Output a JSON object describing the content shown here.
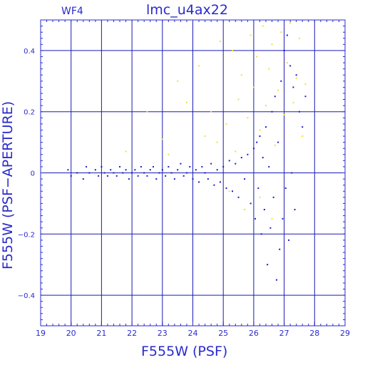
{
  "colors": {
    "axes": "#2a2acd",
    "grid": "#1a1ab4",
    "blue_points": "#1a1ad2",
    "yellow_points": "#f3de3a"
  },
  "chart_data": {
    "type": "scatter",
    "panel_label": "WF4",
    "title": "lmc_u4ax22",
    "xlabel": "F555W (PSF)",
    "ylabel": "F555W (PSF−APERTURE)",
    "xlim": [
      19,
      29
    ],
    "ylim": [
      -0.5,
      0.5
    ],
    "xticks": [
      19,
      20,
      21,
      22,
      23,
      24,
      25,
      26,
      27,
      28,
      29
    ],
    "yticks": [
      -0.4,
      -0.2,
      0,
      0.2,
      0.4
    ],
    "ytick_labels": [
      "−0.4",
      "−0.2",
      "0",
      "0.2",
      "0.4"
    ],
    "grid": true,
    "series": [
      {
        "color": "blue",
        "points": [
          [
            19.9,
            0.01
          ],
          [
            20.0,
            -0.01
          ],
          [
            20.2,
            0.0
          ],
          [
            20.4,
            -0.02
          ],
          [
            20.5,
            0.02
          ],
          [
            20.6,
            0.0
          ],
          [
            20.8,
            0.01
          ],
          [
            20.9,
            -0.01
          ],
          [
            21.0,
            0.02
          ],
          [
            21.1,
            0.0
          ],
          [
            21.2,
            -0.01
          ],
          [
            21.3,
            0.01
          ],
          [
            21.4,
            0.0
          ],
          [
            21.5,
            -0.01
          ],
          [
            21.6,
            0.02
          ],
          [
            21.7,
            0.0
          ],
          [
            21.8,
            0.01
          ],
          [
            21.9,
            -0.02
          ],
          [
            22.0,
            0.0
          ],
          [
            22.1,
            0.01
          ],
          [
            22.2,
            -0.01
          ],
          [
            22.3,
            0.02
          ],
          [
            22.4,
            0.0
          ],
          [
            22.5,
            -0.01
          ],
          [
            22.6,
            0.01
          ],
          [
            22.7,
            0.02
          ],
          [
            22.8,
            -0.02
          ],
          [
            22.9,
            0.0
          ],
          [
            23.0,
            0.01
          ],
          [
            23.1,
            -0.01
          ],
          [
            23.2,
            0.02
          ],
          [
            23.3,
            0.0
          ],
          [
            23.4,
            -0.02
          ],
          [
            23.5,
            0.01
          ],
          [
            23.6,
            0.03
          ],
          [
            23.7,
            -0.01
          ],
          [
            23.8,
            0.0
          ],
          [
            23.9,
            0.02
          ],
          [
            24.0,
            -0.02
          ],
          [
            24.1,
            0.01
          ],
          [
            24.2,
            -0.03
          ],
          [
            24.3,
            0.02
          ],
          [
            24.4,
            0.0
          ],
          [
            24.5,
            -0.02
          ],
          [
            24.6,
            0.03
          ],
          [
            24.7,
            -0.04
          ],
          [
            24.8,
            0.01
          ],
          [
            24.9,
            -0.03
          ],
          [
            25.0,
            0.02
          ],
          [
            25.1,
            -0.05
          ],
          [
            25.2,
            0.04
          ],
          [
            25.3,
            -0.06
          ],
          [
            25.4,
            0.03
          ],
          [
            25.5,
            -0.08
          ],
          [
            25.6,
            0.05
          ],
          [
            25.7,
            -0.02
          ],
          [
            25.8,
            0.06
          ],
          [
            25.9,
            -0.1
          ],
          [
            26.0,
            0.08
          ],
          [
            26.05,
            -0.15
          ],
          [
            26.1,
            0.1
          ],
          [
            26.15,
            -0.05
          ],
          [
            26.2,
            0.12
          ],
          [
            26.25,
            -0.2
          ],
          [
            26.3,
            0.05
          ],
          [
            26.35,
            -0.12
          ],
          [
            26.4,
            0.15
          ],
          [
            26.45,
            -0.3
          ],
          [
            26.5,
            0.02
          ],
          [
            26.55,
            -0.18
          ],
          [
            26.6,
            0.2
          ],
          [
            26.65,
            -0.08
          ],
          [
            26.7,
            0.25
          ],
          [
            26.75,
            -0.35
          ],
          [
            26.8,
            0.1
          ],
          [
            26.85,
            -0.25
          ],
          [
            26.9,
            0.3
          ],
          [
            26.95,
            -0.15
          ],
          [
            27.0,
            0.4
          ],
          [
            27.05,
            -0.05
          ],
          [
            27.1,
            0.45
          ],
          [
            27.15,
            -0.22
          ],
          [
            27.2,
            0.35
          ],
          [
            27.25,
            0.0
          ],
          [
            27.3,
            0.28
          ],
          [
            27.35,
            -0.12
          ],
          [
            27.4,
            0.32
          ],
          [
            27.5,
            0.2
          ],
          [
            27.6,
            0.15
          ],
          [
            27.7,
            0.25
          ]
        ]
      },
      {
        "color": "yellow",
        "points": [
          [
            21.8,
            0.07
          ],
          [
            22.5,
            0.2
          ],
          [
            23.0,
            0.11
          ],
          [
            23.2,
            0.06
          ],
          [
            23.5,
            0.3
          ],
          [
            23.8,
            0.23
          ],
          [
            24.2,
            0.35
          ],
          [
            24.4,
            0.12
          ],
          [
            24.6,
            0.2
          ],
          [
            24.8,
            0.1
          ],
          [
            24.9,
            0.43
          ],
          [
            25.1,
            0.16
          ],
          [
            25.3,
            0.4
          ],
          [
            25.4,
            0.07
          ],
          [
            25.5,
            0.24
          ],
          [
            25.6,
            0.32
          ],
          [
            25.8,
            0.18
          ],
          [
            25.9,
            0.45
          ],
          [
            26.0,
            0.28
          ],
          [
            26.1,
            0.38
          ],
          [
            26.2,
            0.14
          ],
          [
            26.3,
            0.48
          ],
          [
            26.4,
            0.22
          ],
          [
            26.5,
            0.34
          ],
          [
            26.6,
            0.42
          ],
          [
            26.7,
            0.09
          ],
          [
            26.8,
            0.27
          ],
          [
            26.9,
            0.46
          ],
          [
            27.0,
            0.19
          ],
          [
            27.1,
            0.36
          ],
          [
            27.2,
            0.49
          ],
          [
            27.3,
            0.23
          ],
          [
            27.4,
            0.31
          ],
          [
            27.5,
            0.44
          ],
          [
            27.6,
            0.12
          ],
          [
            27.7,
            0.29
          ],
          [
            25.2,
            -0.06
          ],
          [
            25.7,
            -0.12
          ],
          [
            26.2,
            -0.08
          ],
          [
            26.6,
            -0.15
          ]
        ]
      }
    ]
  }
}
